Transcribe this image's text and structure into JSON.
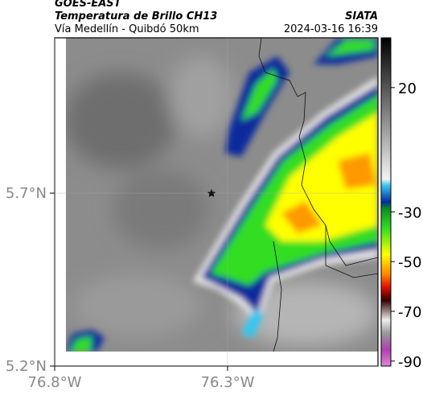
{
  "header": {
    "satellite": "GOES-EAST",
    "product": "Temperatura de Brillo CH13",
    "region": "Vía Medellín - Quibdó 50km",
    "source": "SIATA",
    "timestamp": "2024-03-16 16:39"
  },
  "map": {
    "latlim": [
      5.2,
      6.149
    ],
    "lonlim": [
      -76.8,
      -75.865
    ],
    "latticks": [
      {
        "value": 5.7,
        "label": "5.7°N"
      },
      {
        "value": 5.2,
        "label": "5.2°N"
      }
    ],
    "lonticks": [
      {
        "value": -76.8,
        "label": "76.8°W"
      },
      {
        "value": -76.3,
        "label": "76.3°W"
      }
    ]
  },
  "colorbar": {
    "lim": [
      -92,
      40
    ],
    "ticks": [
      20,
      -30,
      -50,
      -70,
      -90
    ]
  }
}
